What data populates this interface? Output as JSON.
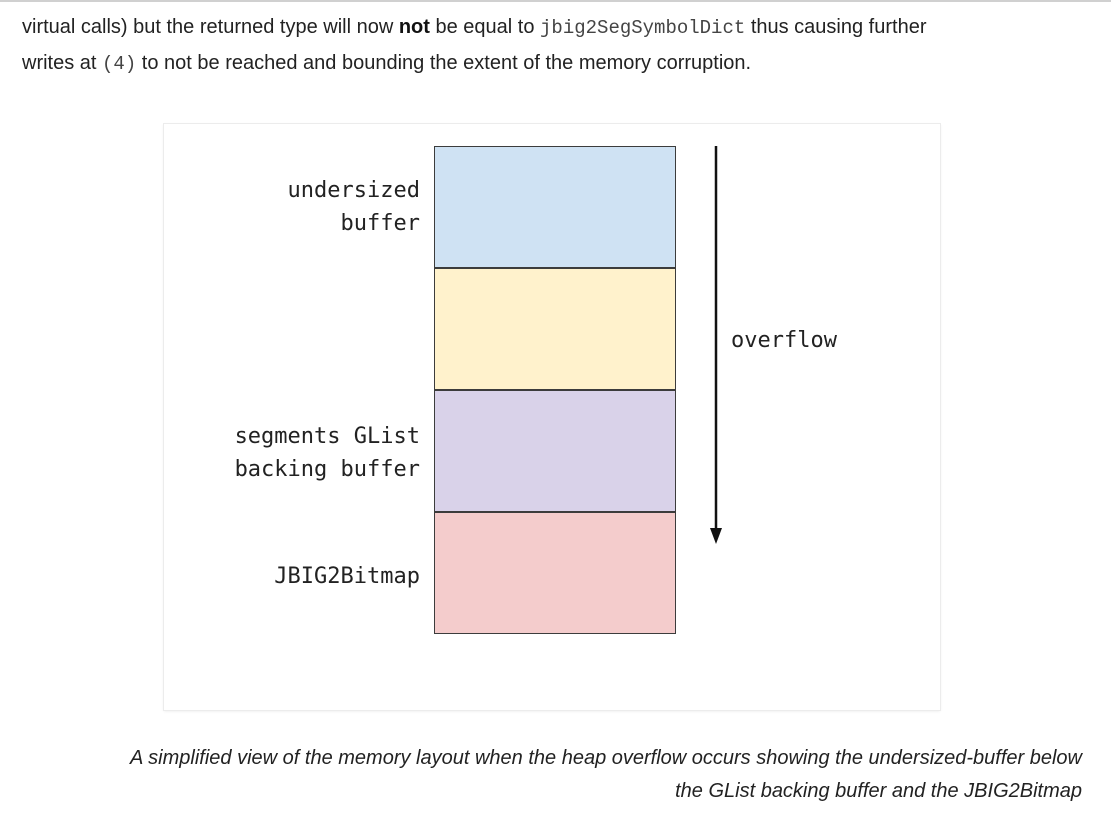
{
  "paragraph": {
    "line1_start": "virtual calls) but the returned type will now ",
    "bold": "not",
    "line1_mid": " be equal to ",
    "code1": "jbig2SegSymbolDict",
    "line1_end": " thus causing further",
    "line2_start": "writes at ",
    "code2": "(4)",
    "line2_end": " to not be reached and bounding the extent of the memory corruption."
  },
  "figure": {
    "label_undersized_line1": "undersized",
    "label_undersized_line2": "buffer",
    "label_segments_line1": "segments GList",
    "label_segments_line2": "backing buffer",
    "label_bitmap": "JBIG2Bitmap",
    "arrow_label": "overflow",
    "colors": {
      "block1": "#cfe2f3",
      "block2": "#fff2cc",
      "block3": "#d9d2e9",
      "block4": "#f4cccc"
    }
  },
  "caption": {
    "line1": "A simplified view of the memory layout when the heap overflow occurs showing the undersized-buffer below",
    "line2": "the GList backing buffer and the JBIG2Bitmap"
  }
}
